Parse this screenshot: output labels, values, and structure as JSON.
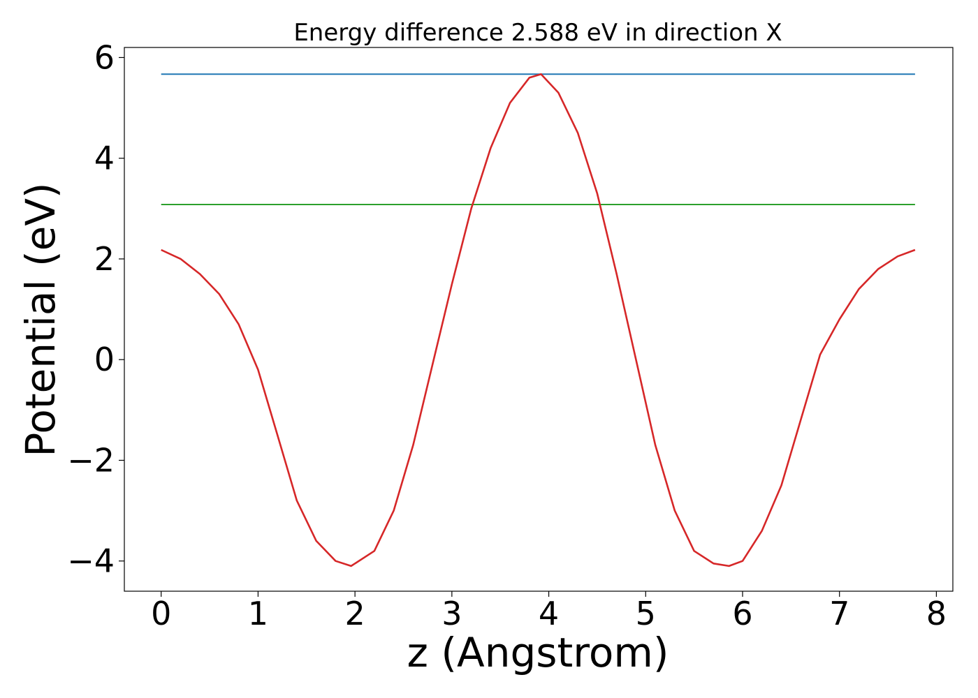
{
  "chart_data": {
    "type": "line",
    "title": "Energy difference 2.588 eV in direction X",
    "xlabel": "z (Angstrom)",
    "ylabel": "Potential (eV)",
    "xlim": [
      -0.38,
      8.17
    ],
    "ylim": [
      -4.6,
      6.2
    ],
    "xticks": [
      0,
      1,
      2,
      3,
      4,
      5,
      6,
      7,
      8
    ],
    "xtick_labels": [
      "0",
      "1",
      "2",
      "3",
      "4",
      "5",
      "6",
      "7",
      "8"
    ],
    "yticks": [
      -4,
      -2,
      0,
      2,
      4,
      6
    ],
    "ytick_labels": [
      "−4",
      "−2",
      "0",
      "2",
      "4",
      "6"
    ],
    "grid": false,
    "series": [
      {
        "color": "#1f77b4",
        "x": [
          0,
          7.78
        ],
        "y": [
          5.67,
          5.67
        ]
      },
      {
        "color": "#2ca02c",
        "x": [
          0,
          7.78
        ],
        "y": [
          3.08,
          3.08
        ]
      },
      {
        "color": "#d62728",
        "x": [
          0,
          0.2,
          0.4,
          0.6,
          0.8,
          1.0,
          1.2,
          1.4,
          1.6,
          1.8,
          1.96,
          2.2,
          2.4,
          2.6,
          2.8,
          3.0,
          3.2,
          3.4,
          3.6,
          3.8,
          3.92,
          4.1,
          4.3,
          4.5,
          4.7,
          4.9,
          5.1,
          5.3,
          5.5,
          5.7,
          5.86,
          6.0,
          6.2,
          6.4,
          6.6,
          6.8,
          7.0,
          7.2,
          7.4,
          7.6,
          7.78
        ],
        "y": [
          2.18,
          2.0,
          1.7,
          1.3,
          0.7,
          -0.2,
          -1.5,
          -2.8,
          -3.6,
          -4.0,
          -4.1,
          -3.8,
          -3.0,
          -1.7,
          -0.1,
          1.5,
          3.0,
          4.2,
          5.1,
          5.6,
          5.67,
          5.3,
          4.5,
          3.3,
          1.7,
          0.0,
          -1.7,
          -3.0,
          -3.8,
          -4.05,
          -4.1,
          -4.0,
          -3.4,
          -2.5,
          -1.2,
          0.1,
          0.8,
          1.4,
          1.8,
          2.05,
          2.18
        ]
      }
    ]
  }
}
